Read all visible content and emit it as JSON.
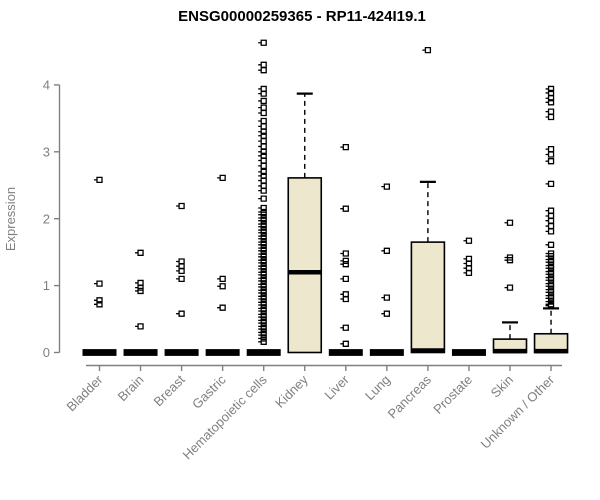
{
  "colors": {
    "background": "#FFFFFF",
    "box_fill": "#EDE7CE",
    "box_stroke": "#000000",
    "median": "#000000",
    "outlier": "#000000",
    "axis": "#808080",
    "tick_text": "#808080",
    "title_text": "#000000"
  },
  "chart_data": {
    "type": "boxplot",
    "title": "ENSG00000259365 - RP11-424I19.1",
    "ylabel": "Expression",
    "xlabel": "",
    "ylim": [
      0,
      4.7
    ],
    "yticks": [
      0,
      1,
      2,
      3,
      4
    ],
    "grid": false,
    "legend": "none",
    "categories": [
      "Bladder",
      "Brain",
      "Breast",
      "Gastric",
      "Hematopoietic cells",
      "Kidney",
      "Liver",
      "Lung",
      "Pancreas",
      "Prostate",
      "Skin",
      "Unknown / Other"
    ],
    "series": [
      {
        "category": "Bladder",
        "q1": 0,
        "median": 0,
        "q3": 0,
        "whisker_low": 0,
        "whisker_high": 0,
        "outliers": [
          2.58,
          1.03,
          0.78,
          0.72
        ]
      },
      {
        "category": "Brain",
        "q1": 0,
        "median": 0,
        "q3": 0,
        "whisker_low": 0,
        "whisker_high": 0,
        "outliers": [
          1.49,
          1.04,
          0.97,
          0.92,
          0.39
        ]
      },
      {
        "category": "Breast",
        "q1": 0,
        "median": 0,
        "q3": 0,
        "whisker_low": 0,
        "whisker_high": 0,
        "outliers": [
          2.19,
          1.36,
          1.29,
          1.22,
          1.1,
          0.58
        ]
      },
      {
        "category": "Gastric",
        "q1": 0,
        "median": 0,
        "q3": 0,
        "whisker_low": 0,
        "whisker_high": 0,
        "outliers": [
          2.61,
          1.1,
          0.99,
          0.67
        ]
      },
      {
        "category": "Hematopoietic cells",
        "q1": 0,
        "median": 0,
        "q3": 0,
        "whisker_low": 0,
        "whisker_high": 0,
        "outliers": [
          4.63,
          4.3,
          4.22,
          3.94,
          3.87,
          3.76,
          3.66,
          3.58,
          3.46,
          3.38,
          3.3,
          3.24,
          3.16,
          3.08,
          3.0,
          2.94,
          2.87,
          2.79,
          2.7,
          2.64,
          2.57,
          2.49,
          2.42,
          2.3,
          2.16,
          2.1,
          2.06,
          2.01,
          1.97,
          1.92,
          1.88,
          1.83,
          1.79,
          1.74,
          1.7,
          1.65,
          1.61,
          1.56,
          1.52,
          1.47,
          1.43,
          1.38,
          1.34,
          1.29,
          1.25,
          1.2,
          1.16,
          1.11,
          1.07,
          1.02,
          0.98,
          0.93,
          0.89,
          0.84,
          0.8,
          0.75,
          0.71,
          0.66,
          0.62,
          0.57,
          0.53,
          0.48,
          0.44,
          0.39,
          0.35,
          0.3,
          0.26,
          0.21,
          0.16
        ]
      },
      {
        "category": "Kidney",
        "q1": 0,
        "median": 1.2,
        "q3": 2.61,
        "whisker_low": 0,
        "whisker_high": 3.87,
        "outliers": []
      },
      {
        "category": "Liver",
        "q1": 0,
        "median": 0,
        "q3": 0,
        "whisker_low": 0,
        "whisker_high": 0,
        "outliers": [
          3.07,
          2.15,
          1.48,
          1.37,
          1.32,
          1.1,
          0.87,
          0.8,
          0.37,
          0.13
        ]
      },
      {
        "category": "Lung",
        "q1": 0,
        "median": 0,
        "q3": 0,
        "whisker_low": 0,
        "whisker_high": 0,
        "outliers": [
          2.48,
          1.52,
          0.82,
          0.58
        ]
      },
      {
        "category": "Pancreas",
        "q1": 0,
        "median": 0.03,
        "q3": 1.65,
        "whisker_low": 0,
        "whisker_high": 2.55,
        "outliers": [
          4.52
        ]
      },
      {
        "category": "Prostate",
        "q1": 0,
        "median": 0,
        "q3": 0,
        "whisker_low": 0,
        "whisker_high": 0,
        "outliers": [
          1.67,
          1.4,
          1.33,
          1.26,
          1.19
        ]
      },
      {
        "category": "Skin",
        "q1": 0,
        "median": 0.02,
        "q3": 0.2,
        "whisker_low": 0,
        "whisker_high": 0.45,
        "outliers": [
          1.94,
          1.42,
          1.38,
          0.97
        ]
      },
      {
        "category": "Unknown / Other",
        "q1": 0,
        "median": 0.02,
        "q3": 0.28,
        "whisker_low": 0,
        "whisker_high": 0.66,
        "outliers": [
          3.94,
          3.88,
          3.8,
          3.74,
          3.6,
          3.52,
          3.04,
          2.96,
          2.86,
          2.52,
          2.12,
          2.04,
          1.97,
          1.89,
          1.81,
          1.61,
          1.48,
          1.44,
          1.39,
          1.35,
          1.3,
          1.26,
          1.21,
          1.17,
          1.12,
          1.08,
          1.03,
          0.99,
          0.94,
          0.9,
          0.85,
          0.81,
          0.76,
          0.72,
          0.7
        ]
      }
    ]
  }
}
